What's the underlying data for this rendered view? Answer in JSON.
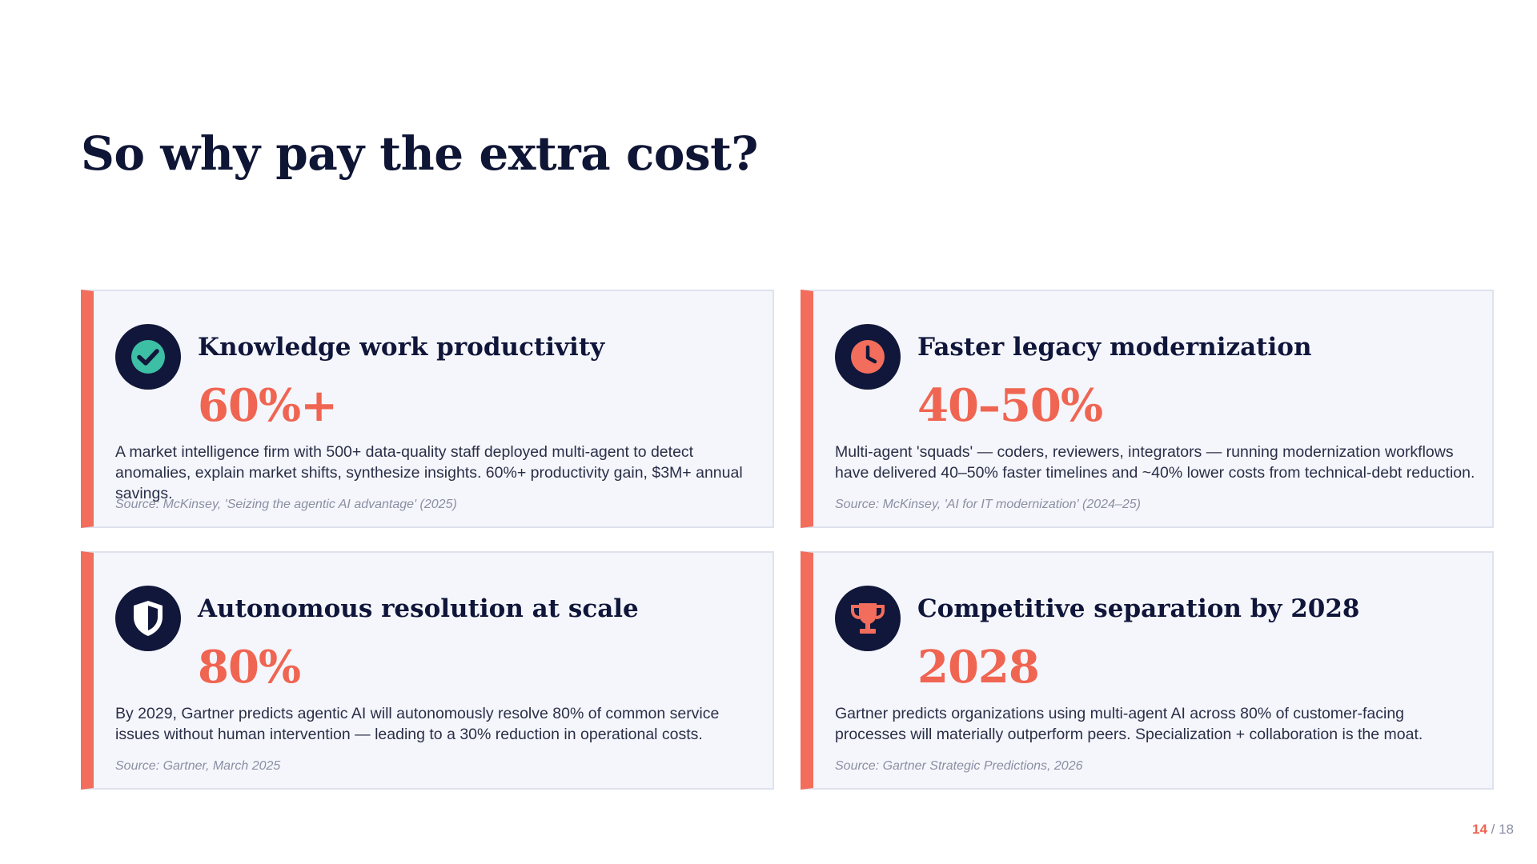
{
  "slide": {
    "title": "So why pay the extra cost?"
  },
  "colors": {
    "accent": "#f26d5b",
    "stat": "#ef6552",
    "navy": "#11173a",
    "card_bg": "#f5f6fb",
    "icon_check": "#3dbfa5"
  },
  "cards": [
    {
      "icon": "check-circle-icon",
      "title": "Knowledge work productivity",
      "stat": "60%+",
      "description": "A market intelligence firm with 500+ data-quality staff deployed multi-agent to detect anomalies, explain market shifts, synthesize insights. 60%+ productivity gain, $3M+ annual savings.",
      "source": "Source: McKinsey, 'Seizing the agentic AI advantage' (2025)"
    },
    {
      "icon": "clock-icon",
      "title": "Faster legacy modernization",
      "stat": "40–50%",
      "description": "Multi-agent 'squads' — coders, reviewers, integrators — running modernization workflows have delivered 40–50% faster timelines and ~40% lower costs from technical-debt reduction.",
      "source": "Source: McKinsey, 'AI for IT modernization' (2024–25)"
    },
    {
      "icon": "shield-icon",
      "title": "Autonomous resolution at scale",
      "stat": "80%",
      "description": "By 2029, Gartner predicts agentic AI will autonomously resolve 80% of common service issues without human intervention — leading to a 30% reduction in operational costs.",
      "source": "Source: Gartner, March 2025"
    },
    {
      "icon": "trophy-icon",
      "title": "Competitive separation by 2028",
      "stat": "2028",
      "description": "Gartner predicts organizations using multi-agent AI across 80% of customer-facing processes will materially outperform peers. Specialization + collaboration is the moat.",
      "source": "Source: Gartner Strategic Predictions, 2026"
    }
  ],
  "pagination": {
    "current": "14",
    "separator": " / ",
    "total": "18"
  }
}
